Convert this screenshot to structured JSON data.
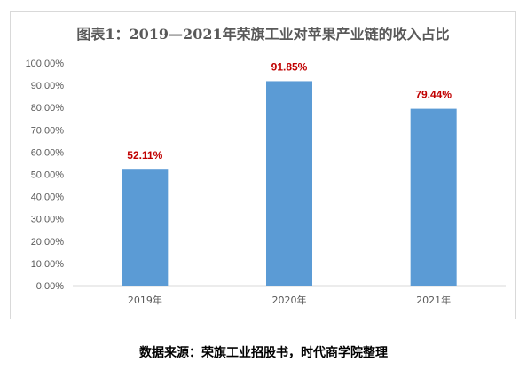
{
  "chart_data": {
    "type": "bar",
    "title": "图表1：2019—2021年荣旗工业对苹果产业链的收入占比",
    "categories": [
      "2019年",
      "2020年",
      "2021年"
    ],
    "values": [
      52.11,
      91.85,
      79.44
    ],
    "data_labels": [
      "52.11%",
      "91.85%",
      "79.44%"
    ],
    "y_ticks": [
      "0.00%",
      "10.00%",
      "20.00%",
      "30.00%",
      "40.00%",
      "50.00%",
      "60.00%",
      "70.00%",
      "80.00%",
      "90.00%",
      "100.00%"
    ],
    "ylim": [
      0,
      100
    ],
    "xlabel": "",
    "ylabel": "",
    "grid": false,
    "legend": "none",
    "bar_color": "#5b9bd5",
    "label_color": "#c00000"
  },
  "source": "数据来源：荣旗工业招股书，时代商学院整理"
}
